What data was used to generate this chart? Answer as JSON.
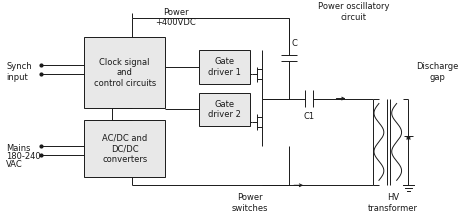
{
  "bg_color": "#ffffff",
  "line_color": "#1a1a1a",
  "box_fill": "#e8e8e8",
  "font_size": 6.0,
  "fig_width": 4.74,
  "fig_height": 2.18,
  "dpi": 100,
  "labels": {
    "power_label": "Power\n+400VDC",
    "power_osc": "Power oscillatory\ncircuit",
    "synch_input": "Synch\ninput",
    "mains1": "Mains",
    "mains2": "180-240",
    "mains3": "VAC",
    "clock_box": "Clock signal\nand\ncontrol circuits",
    "acdc_box": "AC/DC and\nDC/DC\nconverters",
    "gate1_box": "Gate\ndriver 1",
    "gate2_box": "Gate\ndriver 2",
    "power_switches": "Power\nswitches",
    "discharge_gap": "Discharge\ngap",
    "hv_transformer": "HV\ntransformer",
    "C_label": "C",
    "C1_label": "C1"
  }
}
